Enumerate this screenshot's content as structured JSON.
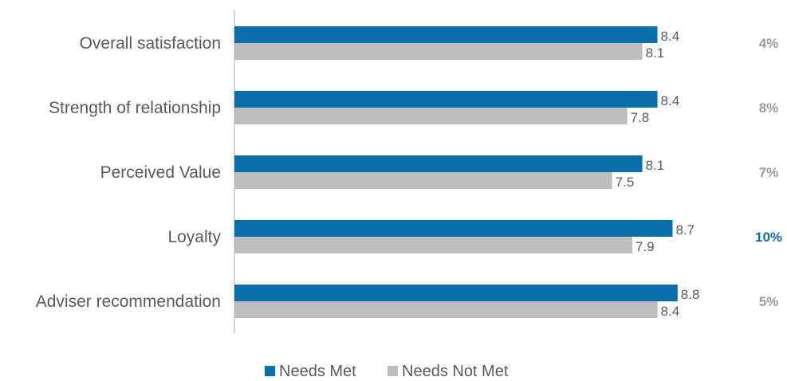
{
  "chart_data": {
    "type": "bar",
    "orientation": "horizontal",
    "categories": [
      "Overall satisfaction",
      "Strength of relationship",
      "Perceived Value",
      "Loyalty",
      "Adviser recommendation"
    ],
    "series": [
      {
        "name": "Needs Met",
        "values": [
          8.4,
          8.4,
          8.1,
          8.7,
          8.8
        ],
        "color": "#0a6eab"
      },
      {
        "name": "Needs Not Met",
        "values": [
          8.1,
          7.8,
          7.5,
          7.9,
          8.4
        ],
        "color": "#bdbdbd"
      }
    ],
    "difference_labels": [
      "4%",
      "8%",
      "7%",
      "10%",
      "5%"
    ],
    "difference_colors": [
      "#9a9a9a",
      "#9a9a9a",
      "#9a9a9a",
      "#0a6eab",
      "#9a9a9a"
    ],
    "xlim": [
      0,
      9.5
    ],
    "grid": false,
    "legend_position": "bottom"
  }
}
